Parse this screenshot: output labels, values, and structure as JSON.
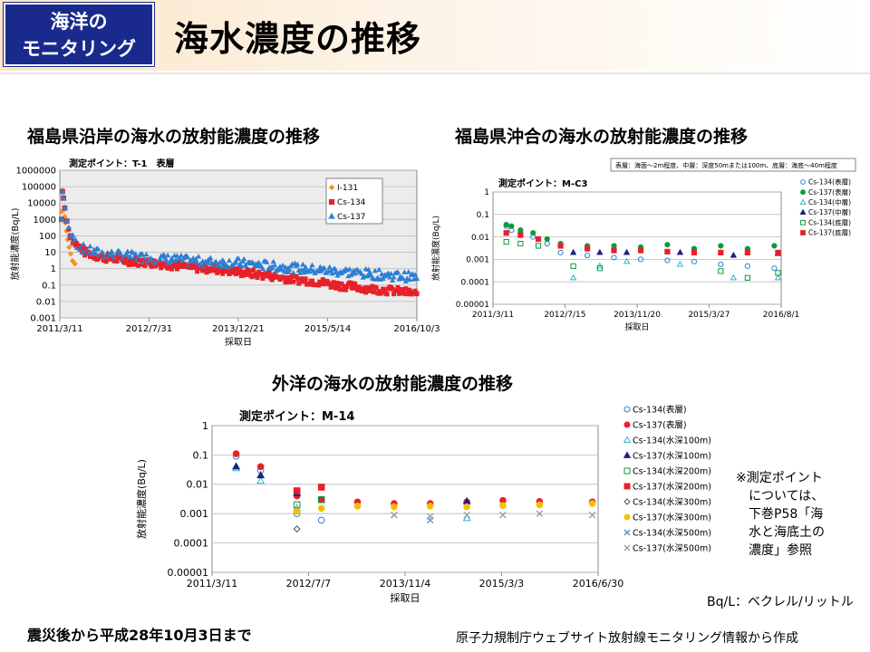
{
  "header": {
    "badge_line1": "海洋の",
    "badge_line2": "モニタリング",
    "title": "海水濃度の推移"
  },
  "notes": {
    "reference_lines": [
      "※測定ポイント",
      "については、",
      "下巻P58「海",
      "水と海底土の",
      "濃度」参照"
    ],
    "unit": "Bq/L：ベクレル/リットル",
    "period": "震災後から平成28年10月3日まで",
    "source": "原子力規制庁ウェブサイト放射線モニタリング情報から作成"
  },
  "colors": {
    "i131": "#f7931e",
    "cs134": "#e8202a",
    "cs137": "#2d7fd3",
    "badge": "#1a2a8c"
  },
  "chart_data": [
    {
      "type": "scatter",
      "title": "福島県沿岸の海水の放射能濃度の推移",
      "subtitle": "測定ポイント：T-1　表層",
      "xlabel": "採取日",
      "ylabel": "放射能濃度(Bq/L)",
      "yscale": "log",
      "ylim": [
        0.001,
        1000000
      ],
      "yticks": [
        "0.001",
        "0.01",
        "0.1",
        "1",
        "10",
        "100",
        "1000",
        "10000",
        "100000",
        "1000000"
      ],
      "xticks": [
        "2011/3/11",
        "2012/7/31",
        "2013/12/21",
        "2015/5/14",
        "2016/10/3"
      ],
      "xlim": [
        "2011-03-11",
        "2016-10-03"
      ],
      "grid": true,
      "legend_position": "top-right",
      "series": [
        {
          "name": "I-131",
          "marker": "diamond",
          "color": "#f7931e",
          "x": [
            "2011-03-21",
            "2011-03-26",
            "2011-03-31",
            "2011-04-04",
            "2011-04-08",
            "2011-04-12",
            "2011-04-18",
            "2011-04-25",
            "2011-05-03",
            "2011-05-12",
            "2011-05-22",
            "2011-06-05"
          ],
          "y": [
            3000,
            60000,
            20000,
            4000,
            1500,
            600,
            200,
            60,
            20,
            8,
            3,
            2
          ]
        },
        {
          "name": "Cs-134",
          "marker": "square",
          "color": "#e8202a",
          "x": [
            "2011-03-21",
            "2011-03-26",
            "2011-04-01",
            "2011-04-08",
            "2011-04-20",
            "2011-05-10",
            "2011-06-01",
            "2011-07-01",
            "2011-08-01",
            "2011-10-01",
            "2012-01-01",
            "2012-04-01",
            "2012-07-01",
            "2012-10-01",
            "2013-01-01",
            "2013-04-01",
            "2013-07-01",
            "2013-10-01",
            "2014-01-01",
            "2014-04-01",
            "2014-07-01",
            "2014-10-01",
            "2015-01-01",
            "2015-04-01",
            "2015-07-01",
            "2015-10-01",
            "2016-01-01",
            "2016-04-01",
            "2016-07-01",
            "2016-10-01"
          ],
          "y": [
            1000,
            50000,
            20000,
            5000,
            800,
            100,
            40,
            20,
            10,
            6,
            4,
            3,
            2.5,
            2,
            1.5,
            1.2,
            1,
            0.8,
            0.6,
            0.45,
            0.35,
            0.25,
            0.2,
            0.15,
            0.1,
            0.08,
            0.06,
            0.05,
            0.04,
            0.03
          ]
        },
        {
          "name": "Cs-137",
          "marker": "triangle",
          "color": "#2d7fd3",
          "x": [
            "2011-03-21",
            "2011-03-26",
            "2011-04-01",
            "2011-04-08",
            "2011-04-20",
            "2011-05-10",
            "2011-06-01",
            "2011-07-01",
            "2011-08-01",
            "2011-10-01",
            "2012-01-01",
            "2012-04-01",
            "2012-07-01",
            "2012-10-01",
            "2013-01-01",
            "2013-04-01",
            "2013-07-01",
            "2013-10-01",
            "2014-01-01",
            "2014-04-01",
            "2014-07-01",
            "2014-10-01",
            "2015-01-01",
            "2015-04-01",
            "2015-07-01",
            "2015-10-01",
            "2016-01-01",
            "2016-04-01",
            "2016-07-01",
            "2016-10-01"
          ],
          "y": [
            1000,
            50000,
            20000,
            5000,
            800,
            100,
            40,
            20,
            12,
            8,
            6,
            5,
            4,
            3.5,
            3,
            2.5,
            2.2,
            2,
            1.8,
            1.5,
            1.2,
            1,
            0.8,
            0.7,
            0.6,
            0.5,
            0.4,
            0.35,
            0.3,
            0.25
          ]
        }
      ]
    },
    {
      "type": "scatter",
      "title": "福島県沖合の海水の放射能濃度の推移",
      "subtitle": "測定ポイント：M-C3",
      "note": "表層：海面～2m程度、中層：深度50mまたは100m、底層：海底～40m程度",
      "xlabel": "採取日",
      "ylabel": "放射能濃度(Bq/L)",
      "yscale": "log",
      "ylim": [
        1e-05,
        1
      ],
      "yticks": [
        "0.00001",
        "0.0001",
        "0.001",
        "0.01",
        "0.1",
        "1"
      ],
      "xticks": [
        "2011/3/11",
        "2012/7/15",
        "2013/11/20",
        "2015/3/27",
        "2016/8/1"
      ],
      "xlim": [
        "2011-03-11",
        "2016-08-01"
      ],
      "grid": true,
      "legend_position": "right",
      "series": [
        {
          "name": "Cs-134(表層)",
          "marker": "circle-open",
          "color": "#2d7fd3",
          "x": [
            "2011-06-10",
            "2011-07-15",
            "2011-09-15",
            "2011-12-10",
            "2012-03-15",
            "2012-06-15",
            "2012-12-15",
            "2013-06-15",
            "2013-12-15",
            "2014-06-15",
            "2014-12-15",
            "2015-06-15",
            "2015-12-15",
            "2016-06-15"
          ],
          "y": [
            0.03,
            0.02,
            0.015,
            0.01,
            0.005,
            0.002,
            0.0015,
            0.0012,
            0.001,
            0.0009,
            0.0008,
            0.0006,
            0.0005,
            0.0004
          ]
        },
        {
          "name": "Cs-137(表層)",
          "marker": "circle",
          "color": "#0a9a3a",
          "x": [
            "2011-06-10",
            "2011-07-15",
            "2011-09-15",
            "2011-12-10",
            "2012-03-15",
            "2012-06-15",
            "2012-12-15",
            "2013-06-15",
            "2013-12-15",
            "2014-06-15",
            "2014-12-15",
            "2015-06-15",
            "2015-12-15",
            "2016-06-15"
          ],
          "y": [
            0.035,
            0.03,
            0.02,
            0.015,
            0.008,
            0.005,
            0.004,
            0.004,
            0.0035,
            0.0045,
            0.003,
            0.004,
            0.003,
            0.004
          ]
        },
        {
          "name": "Cs-134(中層)",
          "marker": "triangle-open",
          "color": "#2eb7c9",
          "x": [
            "2012-09-10",
            "2013-03-10",
            "2013-09-10",
            "2014-09-10",
            "2015-09-10",
            "2016-07-10"
          ],
          "y": [
            0.00015,
            0.0005,
            0.0008,
            0.0006,
            0.00015,
            0.00015
          ]
        },
        {
          "name": "Cs-137(中層)",
          "marker": "triangle",
          "color": "#1a237e",
          "x": [
            "2012-09-10",
            "2013-03-10",
            "2013-09-10",
            "2014-09-10",
            "2015-09-10",
            "2016-07-10"
          ],
          "y": [
            0.002,
            0.002,
            0.002,
            0.002,
            0.0015,
            0.0018
          ]
        },
        {
          "name": "Cs-134(底層)",
          "marker": "square-open",
          "color": "#0a9a3a",
          "x": [
            "2011-06-10",
            "2011-09-15",
            "2012-01-15",
            "2012-09-10",
            "2013-03-10",
            "2015-06-15",
            "2015-12-15",
            "2016-07-10"
          ],
          "y": [
            0.006,
            0.005,
            0.004,
            0.0005,
            0.0004,
            0.0003,
            0.00015,
            0.00025
          ]
        },
        {
          "name": "Cs-137(底層)",
          "marker": "square",
          "color": "#e8202a",
          "x": [
            "2011-06-10",
            "2011-09-15",
            "2012-01-15",
            "2012-06-15",
            "2012-12-15",
            "2013-06-15",
            "2013-12-15",
            "2014-06-15",
            "2014-12-15",
            "2015-06-15",
            "2015-12-15",
            "2016-07-10"
          ],
          "y": [
            0.015,
            0.012,
            0.008,
            0.004,
            0.003,
            0.0025,
            0.0025,
            0.0022,
            0.002,
            0.002,
            0.002,
            0.002
          ]
        }
      ]
    },
    {
      "type": "scatter",
      "title": "外洋の海水の放射能濃度の推移",
      "subtitle": "測定ポイント：M-14",
      "xlabel": "採取日",
      "ylabel": "放射能濃度(Bq/L)",
      "yscale": "log",
      "ylim": [
        1e-05,
        1
      ],
      "yticks": [
        "0.00001",
        "0.0001",
        "0.001",
        "0.01",
        "0.1",
        "1"
      ],
      "xticks": [
        "2011/3/11",
        "2012/7/7",
        "2013/11/4",
        "2015/3/3",
        "2016/6/30"
      ],
      "xlim": [
        "2011-03-11",
        "2016-06-30"
      ],
      "grid": true,
      "legend_position": "right",
      "series": [
        {
          "name": "Cs-134(表層)",
          "marker": "circle-open",
          "color": "#2d7fd3",
          "x": [
            "2011-07-10",
            "2011-11-10",
            "2012-05-10",
            "2012-09-10"
          ],
          "y": [
            0.09,
            0.03,
            0.001,
            0.0006
          ]
        },
        {
          "name": "Cs-137(表層)",
          "marker": "circle",
          "color": "#e8202a",
          "x": [
            "2011-07-10",
            "2011-11-10",
            "2012-05-10",
            "2012-09-10",
            "2013-03-10",
            "2013-09-10",
            "2014-03-10",
            "2014-09-10",
            "2015-03-10",
            "2015-09-10",
            "2016-06-01"
          ],
          "y": [
            0.11,
            0.04,
            0.004,
            0.003,
            0.0025,
            0.0022,
            0.0022,
            0.0025,
            0.0028,
            0.0026,
            0.0025
          ]
        },
        {
          "name": "Cs-134(水深100m)",
          "marker": "triangle-open",
          "color": "#2eb7c9",
          "x": [
            "2011-07-10",
            "2011-11-10",
            "2012-05-10",
            "2014-09-10"
          ],
          "y": [
            0.035,
            0.013,
            0.0015,
            0.0007
          ]
        },
        {
          "name": "Cs-137(水深100m)",
          "marker": "triangle",
          "color": "#1a237e",
          "x": [
            "2011-07-10",
            "2011-11-10",
            "2012-05-10",
            "2014-09-10"
          ],
          "y": [
            0.04,
            0.02,
            0.005,
            0.0026
          ]
        },
        {
          "name": "Cs-134(水深200m)",
          "marker": "square-open",
          "color": "#0a9a3a",
          "x": [
            "2012-05-10",
            "2012-09-10"
          ],
          "y": [
            0.002,
            0.003
          ]
        },
        {
          "name": "Cs-137(水深200m)",
          "marker": "square",
          "color": "#e8202a",
          "x": [
            "2012-05-10",
            "2012-09-10"
          ],
          "y": [
            0.006,
            0.008
          ]
        },
        {
          "name": "Cs-134(水深300m)",
          "marker": "diamond-open",
          "color": "#555555",
          "x": [
            "2012-05-10"
          ],
          "y": [
            0.0003
          ]
        },
        {
          "name": "Cs-137(水深300m)",
          "marker": "circle",
          "color": "#f5c000",
          "x": [
            "2012-05-10",
            "2012-09-10",
            "2013-03-10",
            "2013-09-10",
            "2014-03-10",
            "2014-09-10",
            "2015-03-10",
            "2015-09-10",
            "2016-06-01"
          ],
          "y": [
            0.0012,
            0.0015,
            0.0018,
            0.0017,
            0.0018,
            0.0017,
            0.0019,
            0.002,
            0.0022
          ]
        },
        {
          "name": "Cs-134(水深500m)",
          "marker": "x",
          "color": "#4a90c8",
          "x": [
            "2013-09-10",
            "2014-03-10"
          ],
          "y": [
            0.0009,
            0.0006
          ]
        },
        {
          "name": "Cs-137(水深500m)",
          "marker": "x",
          "color": "#9a9aaa",
          "x": [
            "2013-09-10",
            "2014-03-10",
            "2014-09-10",
            "2015-03-10",
            "2015-09-10",
            "2016-06-01"
          ],
          "y": [
            0.0009,
            0.0008,
            0.0009,
            0.0009,
            0.001,
            0.0009
          ]
        }
      ]
    }
  ]
}
